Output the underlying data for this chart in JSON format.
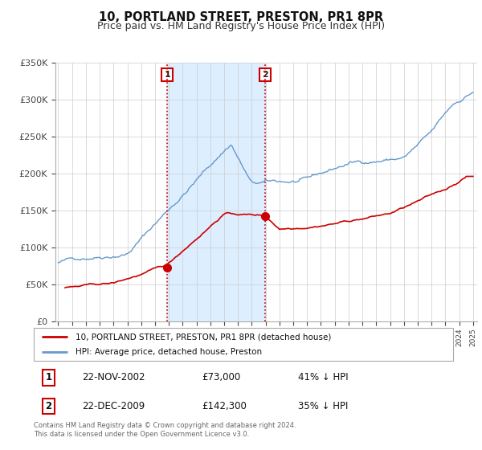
{
  "title": "10, PORTLAND STREET, PRESTON, PR1 8PR",
  "subtitle": "Price paid vs. HM Land Registry's House Price Index (HPI)",
  "title_fontsize": 10.5,
  "subtitle_fontsize": 9,
  "legend_line1": "10, PORTLAND STREET, PRESTON, PR1 8PR (detached house)",
  "legend_line2": "HPI: Average price, detached house, Preston",
  "red_line_color": "#cc0000",
  "blue_line_color": "#6699cc",
  "shade_color": "#ddeeff",
  "purchase1_date_label": "22-NOV-2002",
  "purchase1_price_label": "£73,000",
  "purchase1_pct_label": "41% ↓ HPI",
  "purchase2_date_label": "22-DEC-2009",
  "purchase2_price_label": "£142,300",
  "purchase2_pct_label": "35% ↓ HPI",
  "purchase1_x": 2002.89,
  "purchase1_y_red": 73000,
  "purchase2_x": 2009.97,
  "purchase2_y_red": 142300,
  "ylim": [
    0,
    350000
  ],
  "xlim_start": 1994.8,
  "xlim_end": 2025.3,
  "footer_text": "Contains HM Land Registry data © Crown copyright and database right 2024.\nThis data is licensed under the Open Government Licence v3.0.",
  "yticks": [
    0,
    50000,
    100000,
    150000,
    200000,
    250000,
    300000,
    350000
  ],
  "ytick_labels": [
    "£0",
    "£50K",
    "£100K",
    "£150K",
    "£200K",
    "£250K",
    "£300K",
    "£350K"
  ]
}
